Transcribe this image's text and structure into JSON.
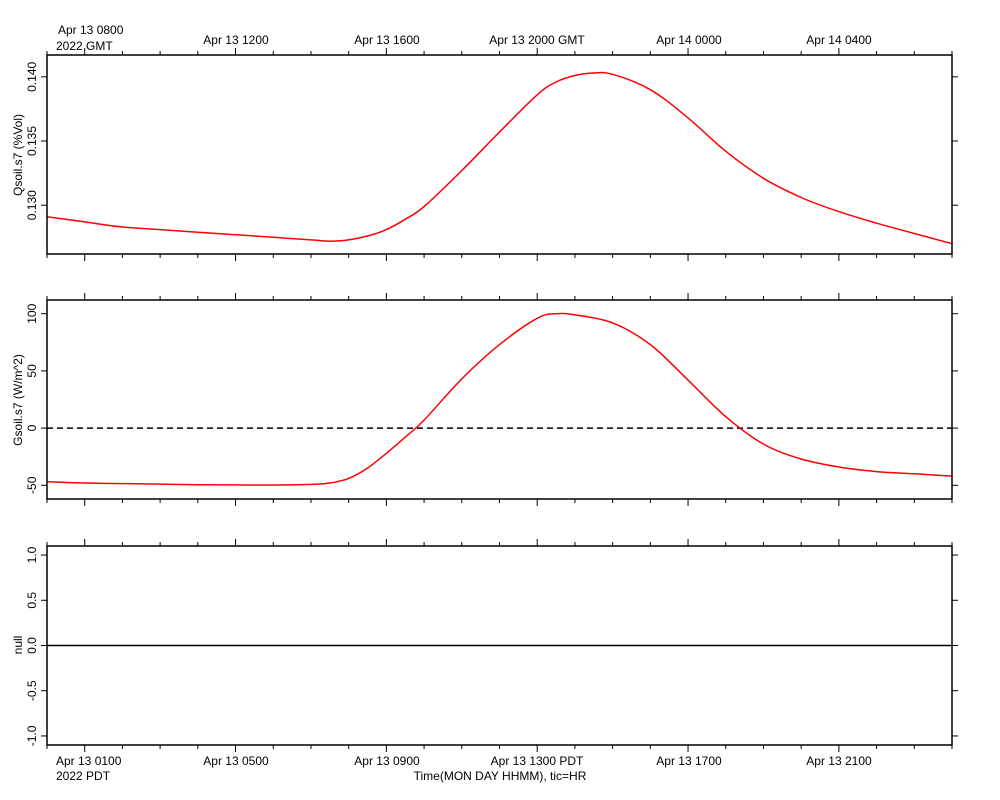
{
  "top_axis": {
    "first_label_line1": "Apr 13 0800",
    "first_label_line2": "2022 GMT",
    "labels": [
      "Apr 13 1200",
      "Apr 13 1600",
      "Apr 13 2000 GMT",
      "Apr 14 0000",
      "Apr 14 0400"
    ]
  },
  "bottom_axis": {
    "first_label_line1": "Apr 13 0100",
    "first_label_line2": "2022 PDT",
    "labels": [
      "Apr 13 0500",
      "Apr 13 0900",
      "Apr 13 1300 PDT",
      "Apr 13 1700",
      "Apr 13 2100"
    ],
    "title": "Time(MON DAY HHMM), tic=HR"
  },
  "colors": {
    "series": "#ff0000",
    "axis": "#000000",
    "zero_line": "#000000"
  },
  "chart_data": [
    {
      "type": "line",
      "ylabel": "Qsoil.s7 (%Vol)",
      "ylim": [
        0.1262,
        0.1417
      ],
      "yticks": [
        0.13,
        0.135,
        0.14
      ],
      "ytick_labels": [
        "0.130",
        "0.135",
        "0.140"
      ],
      "x_unit": "hours since Apr 13 0000 PDT",
      "xlim": [
        0,
        24
      ],
      "series": [
        {
          "color": "#ff0000",
          "x": [
            0,
            1,
            2,
            3,
            4,
            5,
            6,
            7,
            7.5,
            8,
            8.5,
            9,
            9.5,
            10,
            11,
            12,
            13,
            13.5,
            14,
            14.5,
            15,
            16,
            17,
            18,
            19,
            20,
            21,
            22,
            23,
            24
          ],
          "y": [
            0.1291,
            0.1287,
            0.1283,
            0.1281,
            0.1279,
            0.1277,
            0.1275,
            0.1273,
            0.1272,
            0.1273,
            0.1276,
            0.1281,
            0.1289,
            0.1299,
            0.1327,
            0.1357,
            0.1386,
            0.1396,
            0.1401,
            0.1403,
            0.1402,
            0.139,
            0.1368,
            0.1342,
            0.1321,
            0.1306,
            0.1295,
            0.1286,
            0.1278,
            0.127
          ]
        }
      ]
    },
    {
      "type": "line",
      "ylabel": "Gsoil.s7 (W/m^2)",
      "ylim": [
        -62,
        112
      ],
      "yticks": [
        -50,
        0,
        50,
        100
      ],
      "ytick_labels": [
        "-50",
        "0",
        "50",
        "100"
      ],
      "zero_line": "dashed",
      "xlim": [
        0,
        24
      ],
      "series": [
        {
          "color": "#ff0000",
          "x": [
            0,
            1,
            2,
            3,
            4,
            5,
            6,
            7,
            7.5,
            8,
            8.5,
            9,
            9.5,
            10,
            11,
            12,
            13,
            13.5,
            14,
            15,
            16,
            17,
            18,
            19,
            20,
            21,
            22,
            23,
            24
          ],
          "y": [
            -47,
            -48,
            -48.5,
            -49,
            -49.5,
            -49.7,
            -49.8,
            -49.2,
            -48,
            -44,
            -35,
            -22,
            -8,
            7,
            43,
            73,
            96,
            100,
            99,
            92,
            73,
            42,
            10,
            -14,
            -27,
            -34,
            -38,
            -40,
            -42
          ]
        }
      ]
    },
    {
      "type": "line",
      "ylabel": "null",
      "ylim": [
        -1.1,
        1.1
      ],
      "yticks": [
        -1.0,
        -0.5,
        0.0,
        0.5,
        1.0
      ],
      "ytick_labels": [
        "-1.0",
        "-0.5",
        "0.0",
        "0.5",
        "1.0"
      ],
      "xlim": [
        0,
        24
      ],
      "series": [
        {
          "color": "#000000",
          "x": [
            0,
            24
          ],
          "y": [
            0,
            0
          ]
        }
      ]
    }
  ]
}
